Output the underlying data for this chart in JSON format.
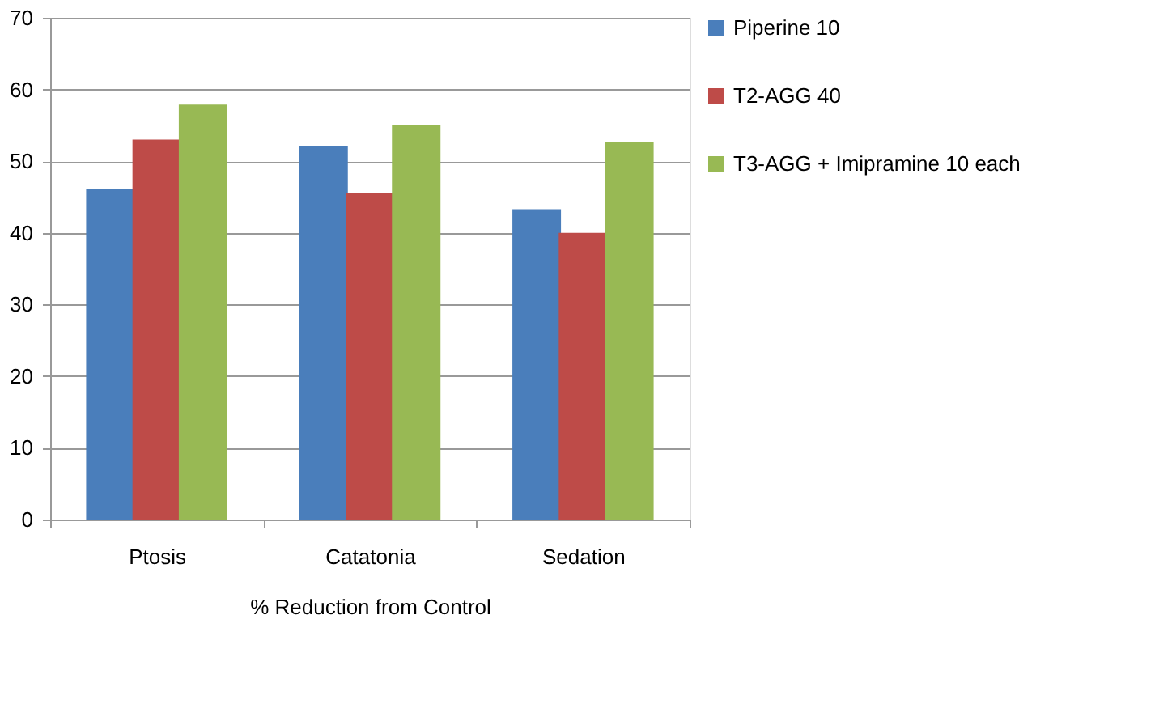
{
  "chart_data": {
    "type": "bar",
    "xlabel": "% Reduction from Control",
    "categories": [
      "Ptosis",
      "Catatonia",
      "Sedation"
    ],
    "series": [
      {
        "name": "Piperine 10",
        "color": "#4a7ebb",
        "values": [
          46.1,
          52.1,
          43.3
        ]
      },
      {
        "name": "T2-AGG 40",
        "color": "#be4b48",
        "values": [
          53.0,
          45.6,
          40.0
        ]
      },
      {
        "name": "T3-AGG + Imipramine 10 each",
        "color": "#98b954",
        "values": [
          57.9,
          55.1,
          52.6
        ]
      }
    ],
    "ylim": [
      0,
      70
    ],
    "yticks": [
      0,
      10,
      20,
      30,
      40,
      50,
      60,
      70
    ],
    "grid": "y",
    "legend": "right"
  }
}
